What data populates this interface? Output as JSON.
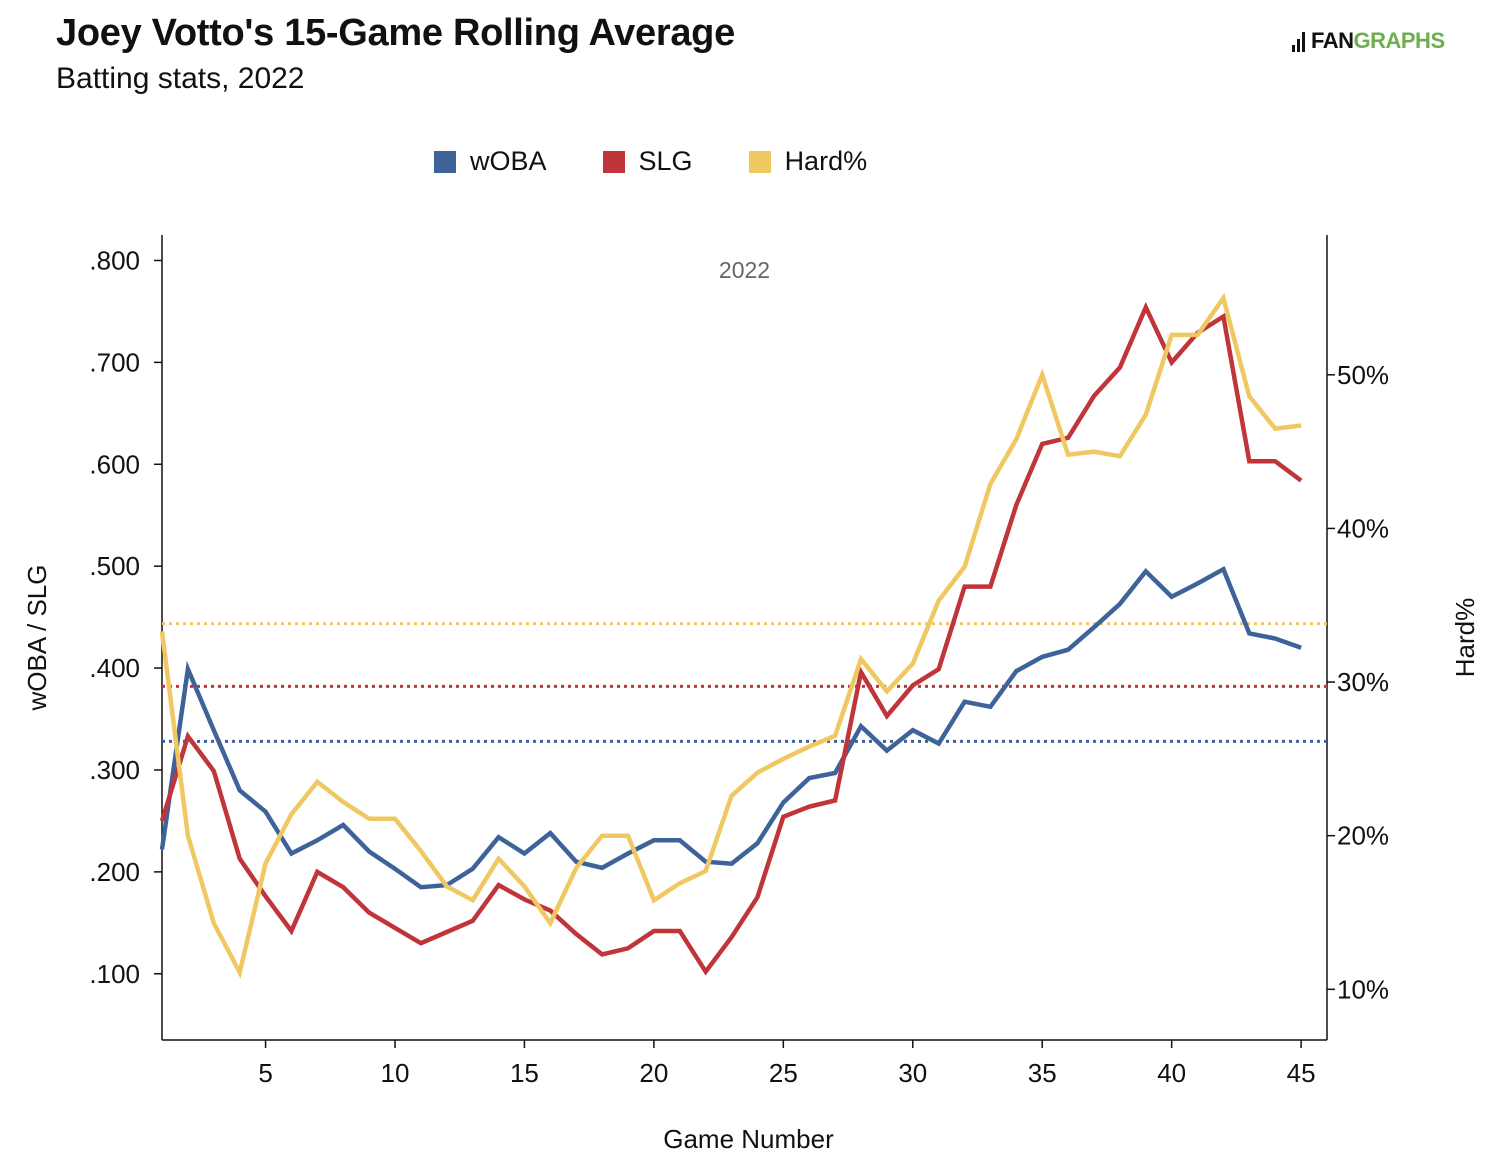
{
  "header": {
    "title": "Joey Votto's 15-Game Rolling Average",
    "subtitle": "Batting stats, 2022",
    "logo_fan": "FAN",
    "logo_graphs": "GRAPHS"
  },
  "colors": {
    "woba": "#3e6399",
    "slg": "#c0353a",
    "hard": "#f0c862",
    "logo_green": "#6dae4f"
  },
  "chart_data": {
    "type": "line",
    "title": "Joey Votto's 15-Game Rolling Average",
    "subtitle": "Batting stats, 2022",
    "annotation": "2022",
    "xlabel": "Game Number",
    "ylabel": "wOBA / SLG",
    "y2label": "Hard%",
    "xlim": [
      1,
      46
    ],
    "ylim": [
      0.035,
      0.825
    ],
    "y2lim": [
      6.7,
      59.1
    ],
    "x_ticks": [
      5,
      10,
      15,
      20,
      25,
      30,
      35,
      40,
      45
    ],
    "y_ticks": [
      0.1,
      0.2,
      0.3,
      0.4,
      0.5,
      0.6,
      0.7,
      0.8
    ],
    "y_tick_labels": [
      ".100",
      ".200",
      ".300",
      ".400",
      ".500",
      ".600",
      ".700",
      ".800"
    ],
    "y2_ticks": [
      10,
      20,
      30,
      40,
      50
    ],
    "y2_tick_labels": [
      "10%",
      "20%",
      "30%",
      "40%",
      "50%"
    ],
    "legend_position": "top-center",
    "grid": false,
    "x": [
      1,
      2,
      3,
      4,
      5,
      6,
      7,
      8,
      9,
      10,
      11,
      12,
      13,
      14,
      15,
      16,
      17,
      18,
      19,
      20,
      21,
      22,
      23,
      24,
      25,
      26,
      27,
      28,
      29,
      30,
      31,
      32,
      33,
      34,
      35,
      36,
      37,
      38,
      39,
      40,
      41,
      42,
      43,
      44,
      45
    ],
    "series": [
      {
        "name": "wOBA",
        "axis": "left",
        "color": "#3e6399",
        "average": 0.328,
        "values": [
          0.222,
          0.399,
          0.339,
          0.28,
          0.259,
          0.218,
          0.231,
          0.246,
          0.22,
          0.203,
          0.185,
          0.187,
          0.203,
          0.234,
          0.218,
          0.238,
          0.21,
          0.204,
          0.218,
          0.231,
          0.231,
          0.21,
          0.208,
          0.228,
          0.268,
          0.292,
          0.297,
          0.343,
          0.319,
          0.339,
          0.326,
          0.367,
          0.362,
          0.397,
          0.411,
          0.418,
          0.44,
          0.463,
          0.495,
          0.47,
          0.483,
          0.497,
          0.434,
          0.429,
          0.42
        ]
      },
      {
        "name": "SLG",
        "axis": "left",
        "color": "#c0353a",
        "average": 0.382,
        "values": [
          0.25,
          0.333,
          0.299,
          0.213,
          0.176,
          0.142,
          0.2,
          0.185,
          0.16,
          0.145,
          0.13,
          0.141,
          0.152,
          0.187,
          0.173,
          0.162,
          0.139,
          0.119,
          0.125,
          0.142,
          0.142,
          0.102,
          0.136,
          0.175,
          0.254,
          0.264,
          0.27,
          0.396,
          0.353,
          0.383,
          0.399,
          0.48,
          0.48,
          0.56,
          0.62,
          0.626,
          0.667,
          0.695,
          0.754,
          0.7,
          0.729,
          0.745,
          0.603,
          0.603,
          0.584
        ]
      },
      {
        "name": "Hard%",
        "axis": "right",
        "color": "#f0c862",
        "average": 33.8,
        "values": [
          33.3,
          20.0,
          14.3,
          11.1,
          18.2,
          21.4,
          23.5,
          22.2,
          21.1,
          21.1,
          19.0,
          16.7,
          15.8,
          18.5,
          16.7,
          14.3,
          17.9,
          20.0,
          20.0,
          15.8,
          16.9,
          17.7,
          22.6,
          24.1,
          25.0,
          25.8,
          26.5,
          31.5,
          29.4,
          31.2,
          35.3,
          37.5,
          42.9,
          45.8,
          50.0,
          44.8,
          45.0,
          44.7,
          47.4,
          52.6,
          52.6,
          55.0,
          48.6,
          46.5,
          46.7
        ]
      }
    ]
  }
}
